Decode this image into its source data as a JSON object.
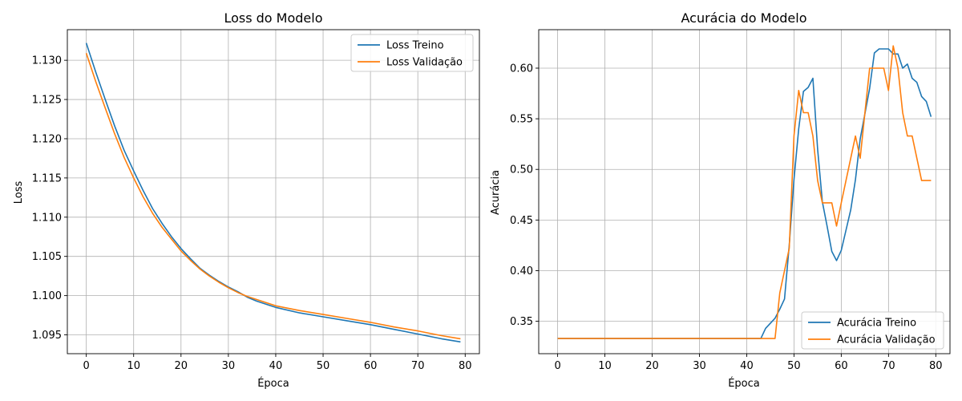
{
  "colors": {
    "train": "#1f77b4",
    "validation": "#ff7f0e",
    "grid": "#b0b0b0"
  },
  "chart_data": [
    {
      "type": "line",
      "title": "Loss do Modelo",
      "xlabel": "Época",
      "ylabel": "Loss",
      "xlim": [
        -4,
        83
      ],
      "ylim": [
        1.0926,
        1.1339
      ],
      "xticks": [
        0,
        10,
        20,
        30,
        40,
        50,
        60,
        70,
        80
      ],
      "yticks": [
        1.095,
        1.1,
        1.105,
        1.11,
        1.115,
        1.12,
        1.125,
        1.13
      ],
      "ytick_labels": [
        "1.095",
        "1.100",
        "1.105",
        "1.110",
        "1.115",
        "1.120",
        "1.125",
        "1.130"
      ],
      "grid": true,
      "legend_position": "upper right",
      "series": [
        {
          "name": "Loss Treino",
          "x": [
            0,
            2,
            4,
            6,
            8,
            10,
            12,
            14,
            16,
            18,
            20,
            22,
            24,
            26,
            28,
            30,
            32,
            34,
            36,
            38,
            40,
            45,
            50,
            55,
            60,
            65,
            70,
            75,
            79
          ],
          "y": [
            1.1322,
            1.1285,
            1.125,
            1.1216,
            1.1185,
            1.1159,
            1.1134,
            1.1111,
            1.1092,
            1.1075,
            1.106,
            1.1047,
            1.1035,
            1.1026,
            1.1018,
            1.1011,
            1.1005,
            1.0998,
            1.0993,
            1.0989,
            1.0985,
            1.0978,
            1.0973,
            1.0968,
            1.0963,
            1.0957,
            1.0951,
            1.0945,
            1.0941
          ]
        },
        {
          "name": "Loss Validação",
          "x": [
            0,
            2,
            4,
            6,
            8,
            10,
            12,
            14,
            16,
            18,
            20,
            22,
            24,
            26,
            28,
            30,
            32,
            34,
            36,
            38,
            40,
            45,
            50,
            55,
            60,
            65,
            70,
            75,
            79
          ],
          "y": [
            1.1309,
            1.1273,
            1.1239,
            1.1206,
            1.1176,
            1.115,
            1.1126,
            1.1105,
            1.1087,
            1.1072,
            1.1057,
            1.1045,
            1.1034,
            1.1025,
            1.1017,
            1.101,
            1.1004,
            1.0999,
            1.0995,
            1.0991,
            1.0987,
            1.0981,
            1.0976,
            1.0971,
            1.0966,
            1.096,
            1.0955,
            1.0949,
            1.0945
          ]
        }
      ]
    },
    {
      "type": "line",
      "title": "Acurácia do Modelo",
      "xlabel": "Época",
      "ylabel": "Acurácia",
      "xlim": [
        -4,
        83
      ],
      "ylim": [
        0.318,
        0.638
      ],
      "xticks": [
        0,
        10,
        20,
        30,
        40,
        50,
        60,
        70,
        80
      ],
      "yticks": [
        0.35,
        0.4,
        0.45,
        0.5,
        0.55,
        0.6
      ],
      "ytick_labels": [
        "0.35",
        "0.40",
        "0.45",
        "0.50",
        "0.55",
        "0.60"
      ],
      "grid": true,
      "legend_position": "lower right",
      "series": [
        {
          "name": "Acurácia Treino",
          "x": [
            0,
            43,
            44,
            46,
            47,
            48,
            49,
            50,
            51,
            52,
            53,
            54,
            55,
            56,
            57,
            58,
            59,
            60,
            61,
            62,
            63,
            64,
            65,
            66,
            67,
            68,
            69,
            70,
            71,
            72,
            73,
            74,
            75,
            76,
            77,
            78,
            79
          ],
          "y": [
            0.333,
            0.333,
            0.343,
            0.353,
            0.362,
            0.372,
            0.425,
            0.49,
            0.54,
            0.577,
            0.581,
            0.59,
            0.52,
            0.468,
            0.444,
            0.419,
            0.41,
            0.42,
            0.44,
            0.46,
            0.49,
            0.53,
            0.555,
            0.58,
            0.615,
            0.619,
            0.619,
            0.619,
            0.614,
            0.614,
            0.6,
            0.604,
            0.59,
            0.586,
            0.572,
            0.567,
            0.552
          ]
        },
        {
          "name": "Acurácia Validação",
          "x": [
            0,
            46,
            47,
            48,
            49,
            50,
            51,
            52,
            53,
            54,
            55,
            56,
            57,
            58,
            59,
            60,
            61,
            62,
            63,
            64,
            65,
            66,
            67,
            68,
            69,
            70,
            71,
            72,
            73,
            74,
            75,
            76,
            77,
            78,
            79
          ],
          "y": [
            0.333,
            0.333,
            0.378,
            0.4,
            0.422,
            0.533,
            0.578,
            0.556,
            0.556,
            0.533,
            0.489,
            0.467,
            0.467,
            0.467,
            0.444,
            0.467,
            0.489,
            0.511,
            0.533,
            0.511,
            0.556,
            0.6,
            0.6,
            0.6,
            0.6,
            0.578,
            0.622,
            0.6,
            0.556,
            0.533,
            0.533,
            0.511,
            0.489,
            0.489,
            0.489
          ]
        }
      ]
    }
  ]
}
